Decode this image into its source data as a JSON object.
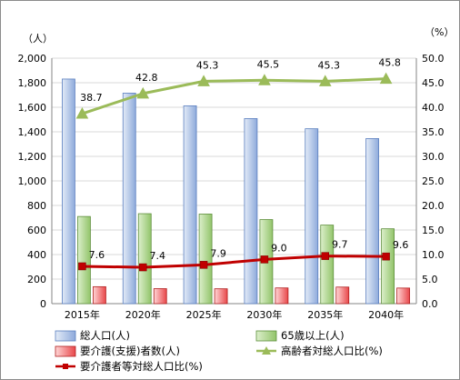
{
  "chart_data": {
    "type": "bar",
    "categories": [
      "2015年",
      "2020年",
      "2025年",
      "2030年",
      "2035年",
      "2040年"
    ],
    "y_left_unit": "（人）",
    "y_right_unit": "（%）",
    "y_left_lim": [
      0,
      2000
    ],
    "y_left_ticks": [
      "0",
      "200",
      "400",
      "600",
      "800",
      "1,000",
      "1,200",
      "1,400",
      "1,600",
      "1,800",
      "2,000"
    ],
    "y_right_lim": [
      0,
      50
    ],
    "y_right_ticks": [
      "0.0",
      "5.0",
      "10.0",
      "15.0",
      "20.0",
      "25.0",
      "30.0",
      "35.0",
      "40.0",
      "45.0",
      "50.0"
    ],
    "grid": true,
    "legend_position": "bottom",
    "series": [
      {
        "name": "総人口(人)",
        "kind": "bar",
        "axis": "left",
        "color": "#8eaadb",
        "values": [
          1830,
          1715,
          1612,
          1508,
          1425,
          1345
        ]
      },
      {
        "name": "65歳以上(人)",
        "kind": "bar",
        "axis": "left",
        "color": "#92c46a",
        "values": [
          710,
          733,
          730,
          685,
          640,
          610
        ]
      },
      {
        "name": "要介護(支援)者数(人)",
        "kind": "bar",
        "axis": "left",
        "color": "#e8474a",
        "values": [
          138,
          122,
          121,
          128,
          135,
          127
        ]
      },
      {
        "name": "高齢者対総人口比(%)",
        "kind": "line",
        "axis": "right",
        "color": "#9bbb59",
        "marker": "triangle",
        "values": [
          38.7,
          42.8,
          45.3,
          45.5,
          45.3,
          45.8
        ],
        "labels": [
          "38.7",
          "42.8",
          "45.3",
          "45.5",
          "45.3",
          "45.8"
        ]
      },
      {
        "name": "要介護者等対総人口比(%)",
        "kind": "line",
        "axis": "right",
        "color": "#c00000",
        "marker": "square",
        "values": [
          7.6,
          7.4,
          7.9,
          9.0,
          9.7,
          9.6
        ],
        "labels": [
          "7.6",
          "7.4",
          "7.9",
          "9.0",
          "9.7",
          "9.6"
        ]
      }
    ]
  }
}
